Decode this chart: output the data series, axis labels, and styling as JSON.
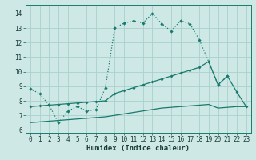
{
  "xlabel": "Humidex (Indice chaleur)",
  "background_color": "#cde8e5",
  "grid_color": "#aacfcc",
  "line_color": "#1a7a6e",
  "xlim": [
    -0.5,
    23.5
  ],
  "ylim": [
    5.8,
    14.6
  ],
  "yticks": [
    6,
    7,
    8,
    9,
    10,
    11,
    12,
    13,
    14
  ],
  "xticks": [
    0,
    1,
    2,
    3,
    4,
    5,
    6,
    7,
    8,
    9,
    10,
    11,
    12,
    13,
    14,
    15,
    16,
    17,
    18,
    19,
    20,
    21,
    22,
    23
  ],
  "line1_x": [
    0,
    1,
    2,
    3,
    4,
    5,
    6,
    7,
    8,
    9,
    10,
    11,
    12,
    13,
    14,
    15,
    16,
    17,
    18,
    19,
    20,
    21
  ],
  "line1_y": [
    8.8,
    8.5,
    7.7,
    6.5,
    7.3,
    7.6,
    7.3,
    7.4,
    8.9,
    13.0,
    13.35,
    13.5,
    13.35,
    14.0,
    13.3,
    12.8,
    13.5,
    13.3,
    12.2,
    10.7,
    9.1,
    9.7
  ],
  "line2_x": [
    0,
    1,
    2,
    3,
    4,
    5,
    6,
    7,
    8,
    9,
    10,
    11,
    12,
    13,
    14,
    15,
    16,
    17,
    18,
    19,
    20,
    21,
    22,
    23
  ],
  "line2_y": [
    7.6,
    7.65,
    7.7,
    7.75,
    7.8,
    7.85,
    7.9,
    7.95,
    8.0,
    8.5,
    8.7,
    8.9,
    9.1,
    9.3,
    9.5,
    9.7,
    9.9,
    10.1,
    10.3,
    10.7,
    9.1,
    9.7,
    8.6,
    7.6
  ],
  "line3_x": [
    0,
    1,
    2,
    3,
    4,
    5,
    6,
    7,
    8,
    9,
    10,
    11,
    12,
    13,
    14,
    15,
    16,
    17,
    18,
    19,
    20,
    21,
    22,
    23
  ],
  "line3_y": [
    6.5,
    6.55,
    6.6,
    6.65,
    6.7,
    6.75,
    6.8,
    6.85,
    6.9,
    7.0,
    7.1,
    7.2,
    7.3,
    7.4,
    7.5,
    7.55,
    7.6,
    7.65,
    7.7,
    7.75,
    7.5,
    7.55,
    7.6,
    7.6
  ]
}
